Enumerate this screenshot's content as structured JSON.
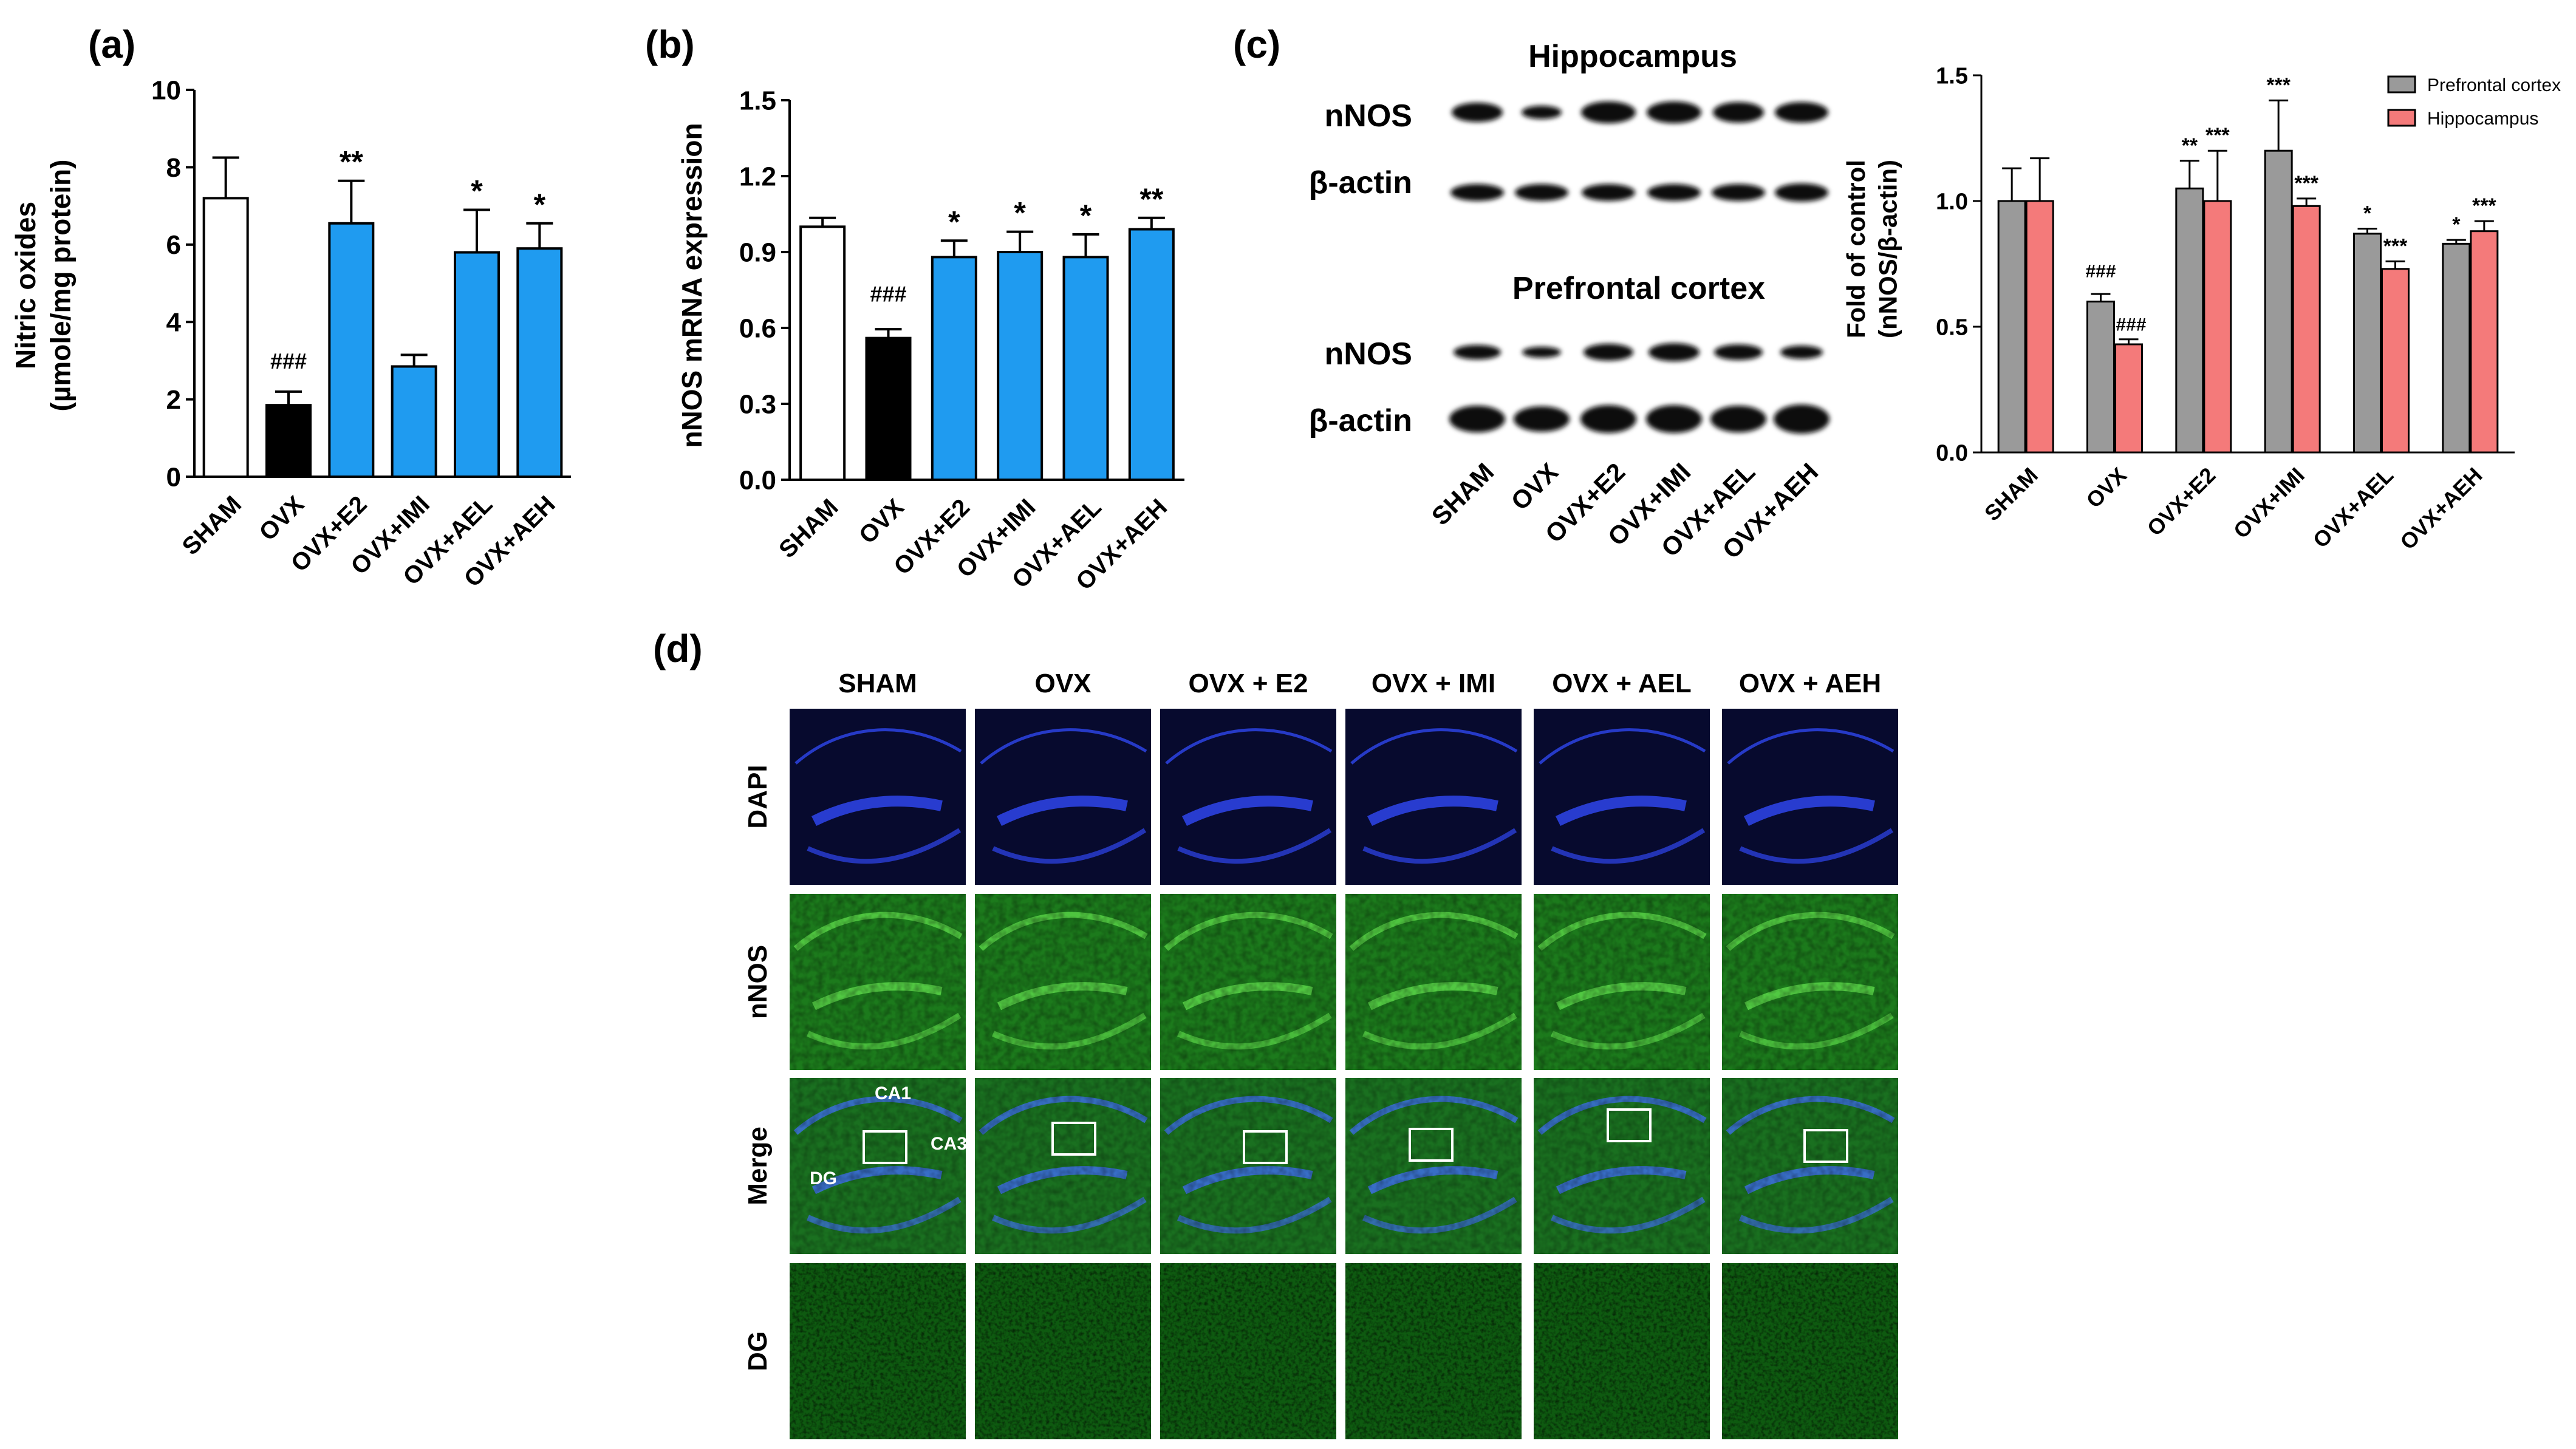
{
  "panels": {
    "a": "(a)",
    "b": "(b)",
    "c": "(c)",
    "d": "(d)"
  },
  "groups": [
    "SHAM",
    "OVX",
    "OVX+E2",
    "OVX+IMI",
    "OVX+AEL",
    "OVX+AEH"
  ],
  "chart_data": [
    {
      "panel": "a",
      "type": "bar",
      "categories": [
        "SHAM",
        "OVX",
        "OVX+E2",
        "OVX+IMI",
        "OVX+AEL",
        "OVX+AEH"
      ],
      "values": [
        7.2,
        1.85,
        6.55,
        2.85,
        5.8,
        5.9
      ],
      "errors": [
        1.05,
        0.35,
        1.1,
        0.3,
        1.1,
        0.65
      ],
      "annotations": [
        "",
        "###",
        "**",
        "",
        "*",
        "*"
      ],
      "bar_colors": [
        "#ffffff",
        "#000000",
        "#1f9bf0",
        "#1f9bf0",
        "#1f9bf0",
        "#1f9bf0"
      ],
      "ylabel_line1": "Nitric oxides",
      "ylabel_line2": "(µmole/mg protein)",
      "ylim": [
        0,
        10
      ],
      "yticks": [
        "0",
        "2",
        "4",
        "6",
        "8",
        "10"
      ]
    },
    {
      "panel": "b",
      "type": "bar",
      "categories": [
        "SHAM",
        "OVX",
        "OVX+E2",
        "OVX+IMI",
        "OVX+AEL",
        "OVX+AEH"
      ],
      "values": [
        1.0,
        0.56,
        0.88,
        0.9,
        0.88,
        0.99
      ],
      "errors": [
        0.035,
        0.035,
        0.065,
        0.08,
        0.09,
        0.045
      ],
      "annotations": [
        "",
        "###",
        "*",
        "*",
        "*",
        "**"
      ],
      "bar_colors": [
        "#ffffff",
        "#000000",
        "#1f9bf0",
        "#1f9bf0",
        "#1f9bf0",
        "#1f9bf0"
      ],
      "ylabel": "nNOS mRNA expression",
      "ylim": [
        0,
        1.5
      ],
      "yticks": [
        "0.0",
        "0.3",
        "0.6",
        "0.9",
        "1.2",
        "1.5"
      ]
    },
    {
      "panel": "c",
      "type": "bar",
      "categories": [
        "SHAM",
        "OVX",
        "OVX+E2",
        "OVX+IMI",
        "OVX+AEL",
        "OVX+AEH"
      ],
      "series": [
        {
          "name": "Prefrontal cortex",
          "color": "#9a9a9a",
          "values": [
            1.0,
            0.6,
            1.05,
            1.2,
            0.87,
            0.83
          ],
          "errors": [
            0.13,
            0.03,
            0.11,
            0.2,
            0.02,
            0.015
          ],
          "annotations": [
            "",
            "###",
            "**",
            "***",
            "*",
            "*"
          ]
        },
        {
          "name": "Hippocampus",
          "color": "#f47a7a",
          "values": [
            1.0,
            0.43,
            1.0,
            0.98,
            0.73,
            0.88
          ],
          "errors": [
            0.17,
            0.02,
            0.2,
            0.03,
            0.03,
            0.04
          ],
          "annotations": [
            "",
            "###",
            "***",
            "***",
            "***",
            "***"
          ]
        }
      ],
      "ylabel_line1": "Fold of control",
      "ylabel_line2": "(nNOS/β-actin)",
      "ylim": [
        0,
        1.5
      ],
      "yticks": [
        "0.0",
        "0.5",
        "1.0",
        "1.5"
      ],
      "legend_position": "top-right"
    }
  ],
  "western_blot": {
    "hippocampus_title": "Hippocampus",
    "prefrontal_title": "Prefrontal cortex",
    "row_labels": [
      "nNOS",
      "β-actin",
      "nNOS",
      "β-actin"
    ],
    "lane_labels": [
      "SHAM",
      "OVX",
      "OVX+E2",
      "OVX+IMI",
      "OVX+AEL",
      "OVX+AEH"
    ]
  },
  "micrographs": {
    "column_headers": [
      "SHAM",
      "OVX",
      "OVX + E2",
      "OVX + IMI",
      "OVX + AEL",
      "OVX + AEH"
    ],
    "row_labels": [
      "DAPI",
      "nNOS",
      "Merge",
      "DG"
    ],
    "region_labels": {
      "ca1": "CA1",
      "ca3": "CA3",
      "dg": "DG"
    }
  }
}
